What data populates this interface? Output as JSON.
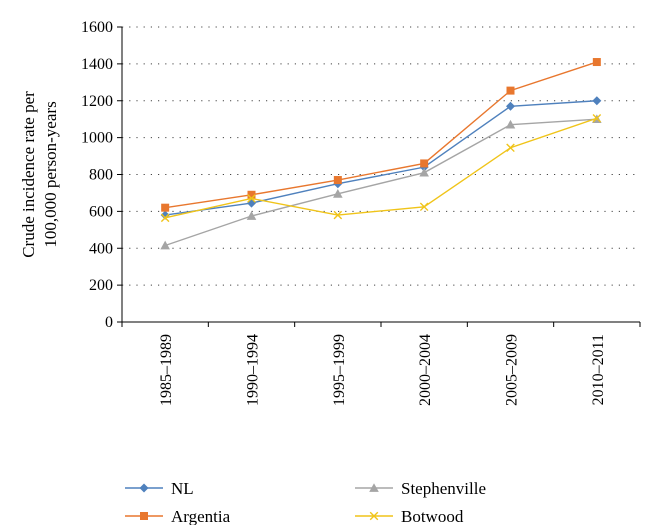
{
  "chart_data": {
    "type": "line",
    "categories": [
      "1985–1989",
      "1990–1994",
      "1995–1999",
      "2000–2004",
      "2005–2009",
      "2010–2011"
    ],
    "ylabel": "Crude incidence rate per 100,000 person-years",
    "ylabel_lines": [
      "Crude incidence rate per",
      "100,000 person-years"
    ],
    "ylim": [
      0,
      1600
    ],
    "yticks": [
      0,
      200,
      400,
      600,
      800,
      1000,
      1200,
      1400,
      1600
    ],
    "grid": true,
    "legend_position": "bottom",
    "series": [
      {
        "name": "NL",
        "color": "#4f81bd",
        "marker": "diamond",
        "values": [
          580,
          645,
          750,
          840,
          1170,
          1200
        ]
      },
      {
        "name": "Argentia",
        "color": "#e8772e",
        "marker": "square",
        "values": [
          620,
          690,
          770,
          860,
          1255,
          1410
        ]
      },
      {
        "name": "Stephenville",
        "color": "#a5a5a5",
        "marker": "triangle",
        "values": [
          415,
          575,
          695,
          810,
          1070,
          1100
        ]
      },
      {
        "name": "Botwood",
        "color": "#f0c419",
        "marker": "x",
        "values": [
          565,
          670,
          580,
          625,
          945,
          1105
        ]
      }
    ]
  }
}
